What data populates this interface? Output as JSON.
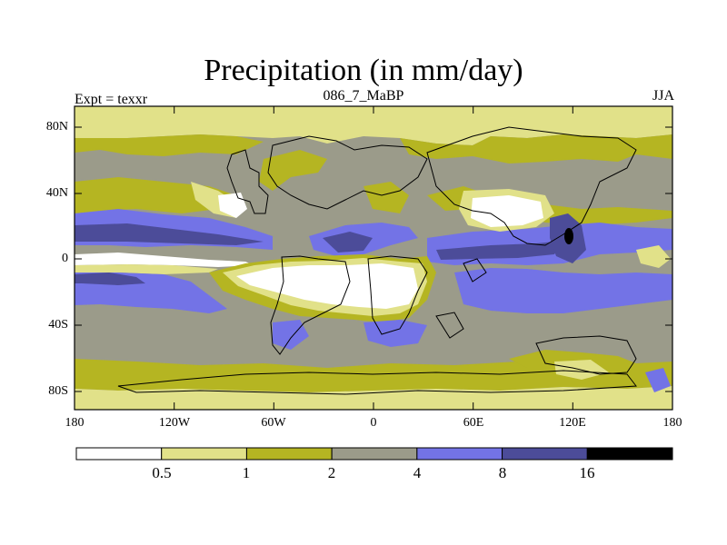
{
  "title": "Precipitation (in mm/day)",
  "subtitle_left": "Expt = texxr",
  "subtitle_center": "086_7_MaBP",
  "subtitle_right": "JJA",
  "lat_labels": [
    "80N",
    "40N",
    "0",
    "40S",
    "80S"
  ],
  "lon_labels": [
    "180",
    "120W",
    "60W",
    "0",
    "60E",
    "120E",
    "180"
  ],
  "colorbar": {
    "levels": [
      "0.5",
      "1",
      "2",
      "4",
      "8",
      "16"
    ],
    "colors": [
      "#ffffff",
      "#e1e189",
      "#b5b522",
      "#9b9b8a",
      "#7373e6",
      "#4c4c99",
      "#000000"
    ]
  }
}
